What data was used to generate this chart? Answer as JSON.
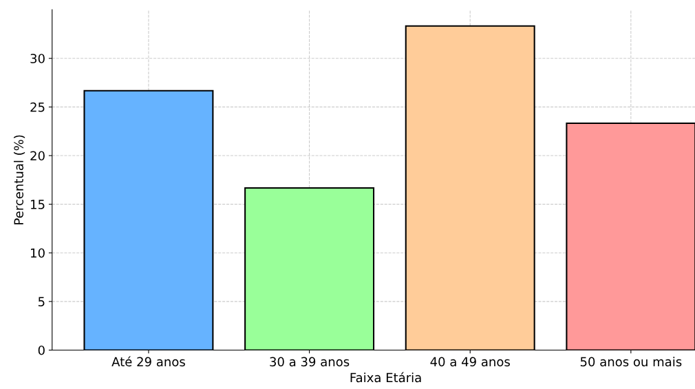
{
  "chart_data": {
    "type": "bar",
    "xlabel": "Faixa Etária",
    "ylabel": "Percentual (%)",
    "categories": [
      "Até 29 anos",
      "30 a 39 anos",
      "40 a 49 anos",
      "50 anos ou mais"
    ],
    "values": [
      26.67,
      16.67,
      33.33,
      23.33
    ],
    "colors": [
      "#66b3ff",
      "#99ff99",
      "#ffcc99",
      "#ff9999"
    ],
    "ylim": [
      0,
      35
    ],
    "yticks": [
      0,
      5,
      10,
      15,
      20,
      25,
      30
    ],
    "grid": true
  }
}
